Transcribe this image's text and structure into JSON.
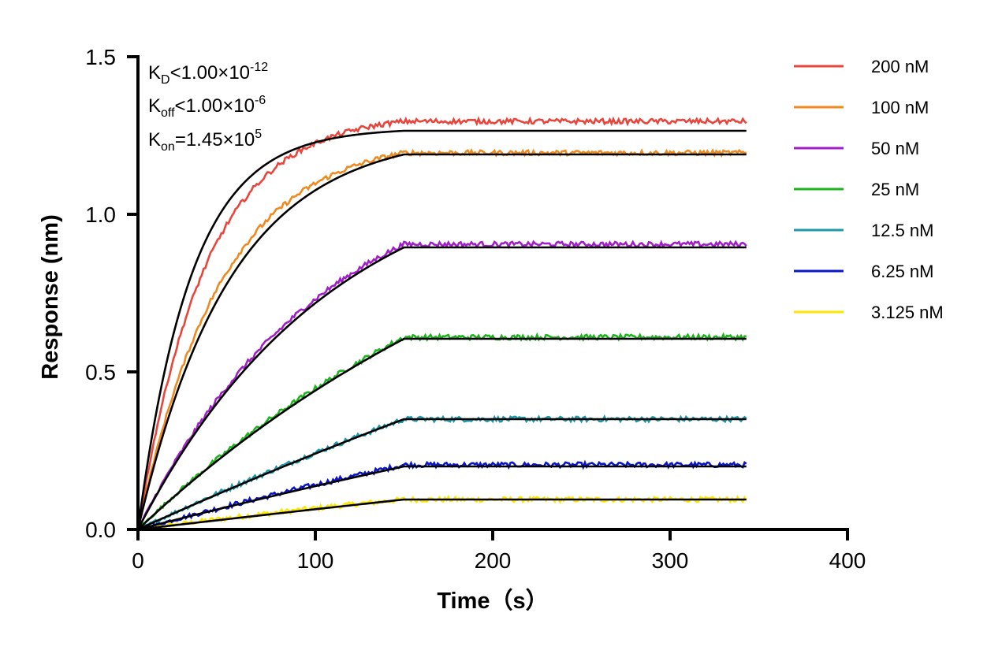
{
  "chart_data": {
    "type": "line",
    "xlabel": "Time（s）",
    "ylabel": "Response (nm)",
    "xlim": [
      0,
      400
    ],
    "ylim": [
      0,
      1.5
    ],
    "xticks": [
      "0",
      "100",
      "200",
      "300",
      "400"
    ],
    "yticks": [
      "0.0",
      "0.5",
      "1.0",
      "1.5"
    ],
    "grid": false,
    "legend_position": "top-right",
    "association_end_s": 150,
    "dissociation_end_s": 343,
    "annotations": {
      "kd": {
        "main": "K",
        "sub": "D",
        "rel": "<1.00×10",
        "sup": "-12"
      },
      "koff": {
        "main": "K",
        "sub": "off",
        "rel": "<1.00×10",
        "sup": "-6"
      },
      "kon": {
        "main": "K",
        "sub": "on",
        "rel": "=1.45×10",
        "sup": "5"
      }
    },
    "series": [
      {
        "name": "200 nM",
        "color": "#e8463c",
        "plateau": 1.295,
        "fit_plateau": 1.265,
        "fit_tau": 30,
        "data_tau": 38
      },
      {
        "name": "100 nM",
        "color": "#f08a1e",
        "plateau": 1.195,
        "fit_plateau": 1.19,
        "fit_tau": 52,
        "data_tau": 47
      },
      {
        "name": "50 nM",
        "color": "#a21ec8",
        "plateau": 0.905,
        "fit_plateau": 0.895,
        "fit_tau": 110,
        "data_tau": 105
      },
      {
        "name": "25 nM",
        "color": "#1eb41e",
        "plateau": 0.61,
        "fit_plateau": 0.605,
        "fit_tau": 260,
        "data_tau": 240
      },
      {
        "name": "12.5 nM",
        "color": "#1e9aaa",
        "plateau": 0.35,
        "fit_plateau": 0.35,
        "fit_tau": 800,
        "data_tau": 600
      },
      {
        "name": "6.25 nM",
        "color": "#0a14c8",
        "plateau": 0.205,
        "fit_plateau": 0.2,
        "fit_tau": 800,
        "data_tau": 700
      },
      {
        "name": "3.125 nM",
        "color": "#ffe600",
        "plateau": 0.095,
        "fit_plateau": 0.095,
        "fit_tau": 2000,
        "data_tau": 400
      }
    ],
    "fit_color": "#000000"
  }
}
